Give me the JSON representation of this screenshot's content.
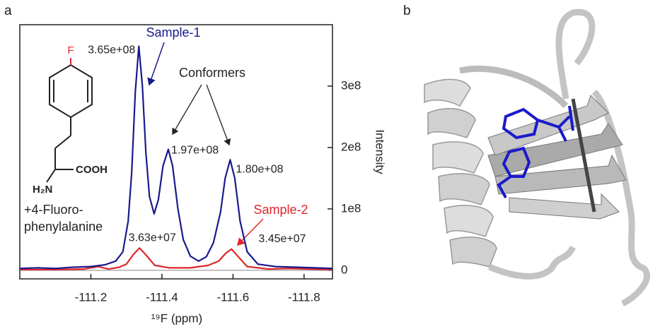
{
  "panel_labels": [
    "a",
    "b"
  ],
  "molecule": {
    "atoms": [
      "F",
      "COOH",
      "H₂N"
    ],
    "name": [
      "+4-Fluoro-",
      "phenylalanine"
    ]
  },
  "chart_data": {
    "type": "line",
    "xlabel": "¹⁹F (ppm)",
    "ylabel": "Intensity",
    "annotation": "Conformers",
    "xlim": [
      -111.0,
      -111.88
    ],
    "xticks": [
      -111.2,
      -111.4,
      -111.6,
      -111.8
    ],
    "ylim": [
      -14000000,
      400000000
    ],
    "yticks": [
      0,
      {
        "value": 100000000,
        "label": "1e8"
      },
      {
        "value": 200000000,
        "label": "2e8"
      },
      {
        "value": 300000000,
        "label": "3e8"
      }
    ],
    "series": [
      {
        "name": "Sample-1",
        "color": "#1a1a8c",
        "x": [
          -111.0,
          -111.05,
          -111.1,
          -111.15,
          -111.2,
          -111.24,
          -111.27,
          -111.29,
          -111.305,
          -111.315,
          -111.325,
          -111.335,
          -111.345,
          -111.355,
          -111.365,
          -111.378,
          -111.39,
          -111.403,
          -111.418,
          -111.43,
          -111.445,
          -111.46,
          -111.48,
          -111.503,
          -111.525,
          -111.545,
          -111.565,
          -111.578,
          -111.592,
          -111.605,
          -111.62,
          -111.64,
          -111.67,
          -111.72,
          -111.78,
          -111.83,
          -111.88
        ],
        "values": [
          3000000,
          4000000,
          3000000,
          5000000,
          6000000,
          9000000,
          15000000,
          30000000,
          80000000,
          160000000,
          290000000,
          365000000,
          300000000,
          190000000,
          120000000,
          92000000,
          115000000,
          170000000,
          197000000,
          170000000,
          100000000,
          50000000,
          23000000,
          15000000,
          22000000,
          45000000,
          95000000,
          150000000,
          180000000,
          150000000,
          80000000,
          30000000,
          10000000,
          6000000,
          5000000,
          4000000,
          3000000
        ]
      },
      {
        "name": "Sample-2",
        "color": "#e0262b",
        "x": [
          -111.0,
          -111.1,
          -111.18,
          -111.22,
          -111.25,
          -111.28,
          -111.3,
          -111.32,
          -111.337,
          -111.355,
          -111.38,
          -111.42,
          -111.48,
          -111.53,
          -111.56,
          -111.58,
          -111.596,
          -111.615,
          -111.64,
          -111.7,
          -111.76,
          -111.82,
          -111.88
        ],
        "values": [
          1000000,
          1000000,
          2000000,
          6000000,
          2000000,
          5000000,
          10000000,
          26000000,
          36300000,
          25000000,
          8000000,
          4000000,
          4000000,
          8000000,
          15000000,
          28000000,
          34500000,
          22000000,
          6000000,
          2000000,
          3000000,
          2000000,
          1000000
        ]
      }
    ],
    "peaks": [
      {
        "x": -111.335,
        "y": 365000000,
        "label": "3.65e+08"
      },
      {
        "x": -111.418,
        "y": 197000000,
        "label": "1.97e+08"
      },
      {
        "x": -111.592,
        "y": 180000000,
        "label": "1.80e+08"
      },
      {
        "x": -111.337,
        "y": 36300000,
        "label": "3.63e+07"
      },
      {
        "x": -111.596,
        "y": 34500000,
        "label": "3.45e+07"
      }
    ]
  }
}
